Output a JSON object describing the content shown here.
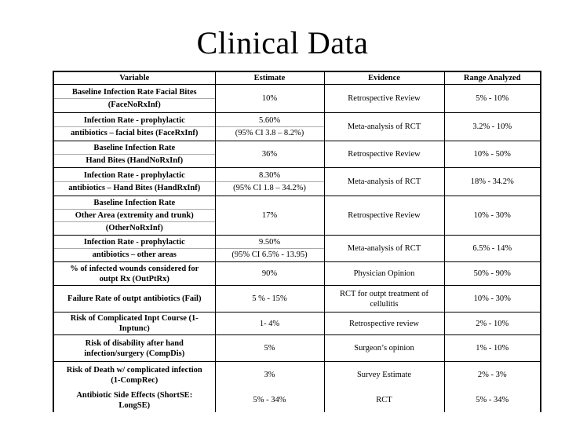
{
  "slide": {
    "title": "Clinical Data"
  },
  "colors": {
    "background": "#ffffff",
    "text": "#000000",
    "table_border": "#000000",
    "sub_divider": "#a9a9a9"
  },
  "table": {
    "columns": [
      "Variable",
      "Estimate",
      "Evidence",
      "Range Analyzed"
    ],
    "rows": [
      {
        "variable": [
          "Baseline Infection Rate Facial Bites",
          "(FaceNoRxInf)"
        ],
        "variable_split": true,
        "estimate": [
          "10%"
        ],
        "estimate_split": false,
        "evidence": [
          "Retrospective Review"
        ],
        "range": "5% - 10%"
      },
      {
        "variable": [
          "Infection Rate - prophylactic",
          "antibiotics – facial bites (FaceRxInf)"
        ],
        "variable_split": true,
        "estimate": [
          "5.60%",
          "(95% CI 3.8 – 8.2%)"
        ],
        "estimate_split": true,
        "evidence": [
          "Meta-analysis of RCT"
        ],
        "range": "3.2% - 10%"
      },
      {
        "variable": [
          "Baseline Infection Rate",
          "Hand Bites (HandNoRxInf)"
        ],
        "variable_split": true,
        "estimate": [
          "36%"
        ],
        "estimate_split": false,
        "evidence": [
          "Retrospective Review"
        ],
        "range": "10% - 50%"
      },
      {
        "variable": [
          "Infection Rate - prophylactic",
          "antibiotics – Hand Bites (HandRxInf)"
        ],
        "variable_split": true,
        "estimate": [
          "8.30%",
          "(95% CI 1.8 – 34.2%)"
        ],
        "estimate_split": true,
        "evidence": [
          "Meta-analysis of RCT"
        ],
        "range": "18% - 34.2%"
      },
      {
        "variable": [
          "Baseline Infection Rate",
          "Other Area (extremity and trunk)",
          "(OtherNoRxInf)"
        ],
        "variable_split": true,
        "estimate": [
          "17%"
        ],
        "estimate_split": false,
        "evidence": [
          "Retrospective Review"
        ],
        "range": "10% - 30%"
      },
      {
        "variable": [
          "Infection Rate - prophylactic",
          "antibiotics – other areas"
        ],
        "variable_split": true,
        "estimate": [
          "9.50%",
          "(95% CI 6.5% - 13.95)"
        ],
        "estimate_split": true,
        "evidence": [
          "Meta-analysis of RCT"
        ],
        "range": "6.5% - 14%"
      },
      {
        "variable": [
          "% of infected wounds considered for",
          "outpt Rx (OutPtRx)"
        ],
        "variable_split": false,
        "estimate": [
          "90%"
        ],
        "estimate_split": false,
        "evidence": [
          "Physician Opinion"
        ],
        "range": "50% - 90%"
      },
      {
        "variable": [
          "Failure Rate of outpt antibiotics (Fail)"
        ],
        "variable_split": false,
        "estimate": [
          "5 % - 15%"
        ],
        "estimate_split": false,
        "evidence": [
          "RCT for outpt treatment of",
          "cellulitis"
        ],
        "range": "10% - 30%"
      },
      {
        "variable": [
          "Risk of Complicated Inpt Course (1-",
          "Inptunc)"
        ],
        "variable_split": false,
        "estimate": [
          "1- 4%"
        ],
        "estimate_split": false,
        "evidence": [
          "Retrospective review"
        ],
        "range": "2% - 10%"
      },
      {
        "variable": [
          "Risk of disability after hand",
          "infection/surgery (CompDis)"
        ],
        "variable_split": false,
        "estimate": [
          "5%"
        ],
        "estimate_split": false,
        "evidence": [
          "Surgeon’s opinion"
        ],
        "range": "1% - 10%"
      },
      {
        "variable": [
          "Risk of Death w/ complicated infection",
          "(1-CompRec)"
        ],
        "variable_split": false,
        "estimate": [
          "3%"
        ],
        "estimate_split": false,
        "evidence": [
          "Survey Estimate"
        ],
        "range": "2% - 3%"
      },
      {
        "variable": [
          "Antibiotic Side Effects (ShortSE:",
          "LongSE)"
        ],
        "variable_split": false,
        "estimate": [
          "5% - 34%"
        ],
        "estimate_split": false,
        "evidence": [
          "RCT"
        ],
        "range": "5% - 34%"
      }
    ]
  }
}
